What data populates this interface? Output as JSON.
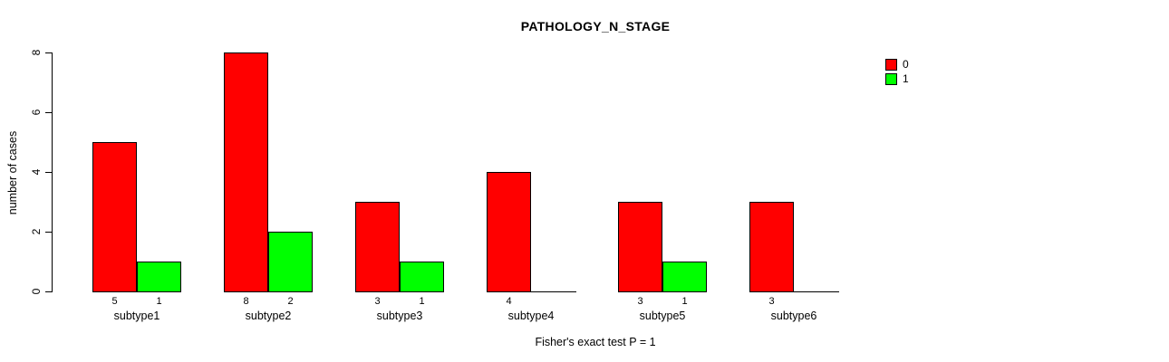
{
  "chart_data": {
    "type": "bar",
    "title": "PATHOLOGY_N_STAGE",
    "ylabel": "number of cases",
    "xlabel": "",
    "footnote": "Fisher's exact test P = 1",
    "categories": [
      "subtype1",
      "subtype2",
      "subtype3",
      "subtype4",
      "subtype5",
      "subtype6"
    ],
    "series": [
      {
        "name": "0",
        "color": "#FF0000",
        "values": [
          5,
          8,
          3,
          4,
          3,
          3
        ]
      },
      {
        "name": "1",
        "color": "#00FF00",
        "values": [
          1,
          2,
          1,
          0,
          1,
          0
        ]
      }
    ],
    "ylim": [
      0,
      8
    ],
    "yticks": [
      0,
      2,
      4,
      6,
      8
    ],
    "grid": false,
    "legend_position": "top-right",
    "bar_value_labels": true,
    "hide_zero_value_labels": true,
    "axis_color": "#000000",
    "background_color": "#FFFFFF"
  }
}
